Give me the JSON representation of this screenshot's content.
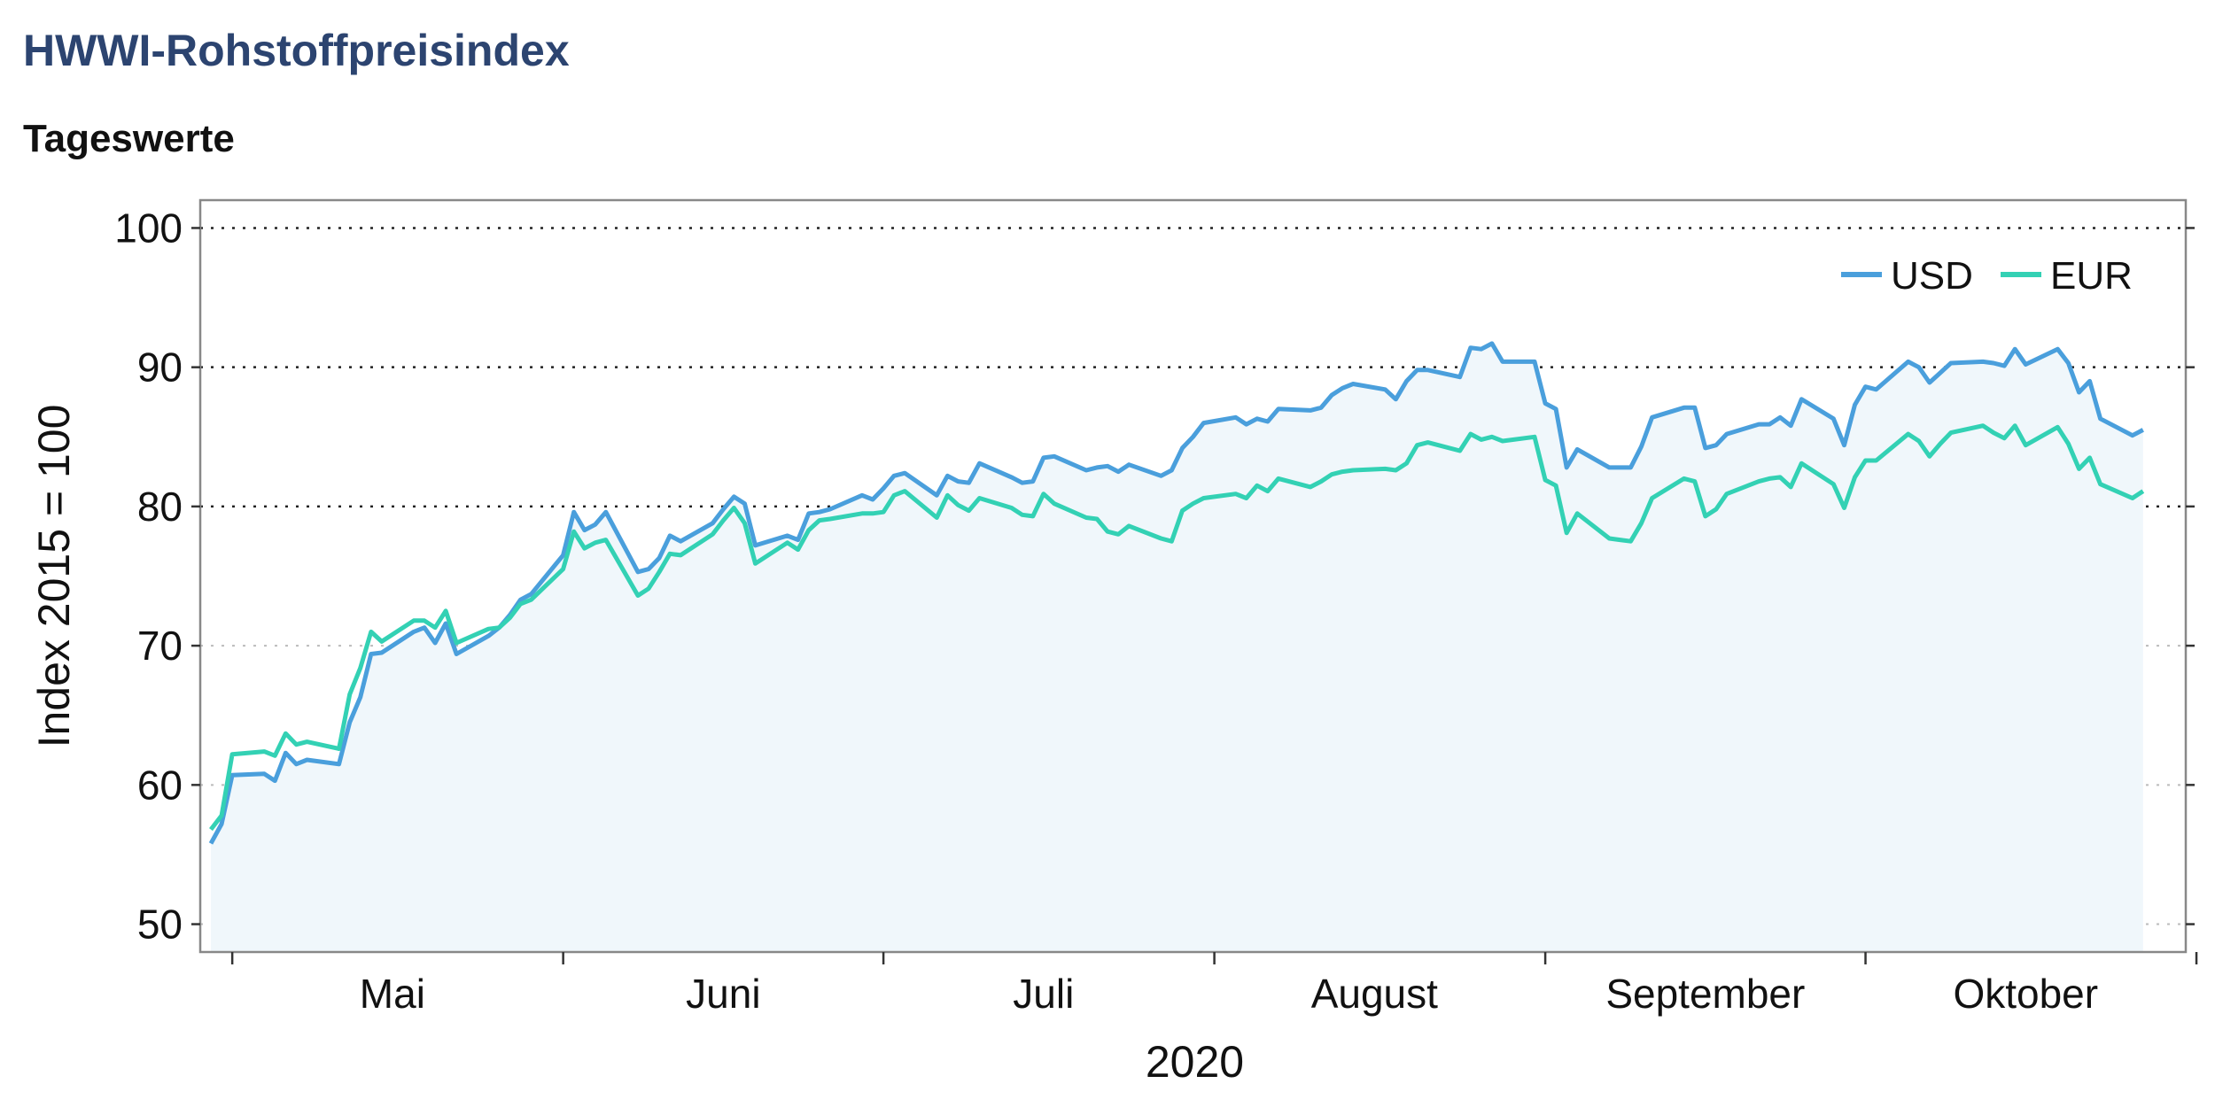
{
  "header": {
    "title": "HWWI-Rohstoffpreisindex",
    "subtitle": "Tageswerte"
  },
  "chart_data": {
    "type": "line",
    "title": "HWWI-Rohstoffpreisindex",
    "subtitle": "Tageswerte",
    "ylabel": "Index 2015 = 100",
    "xlabel": "2020",
    "ylim": [
      48,
      102
    ],
    "yticks": [
      50,
      60,
      70,
      80,
      90,
      100
    ],
    "month_labels": [
      "Mai",
      "Juni",
      "Juli",
      "August",
      "September",
      "Oktober"
    ],
    "month_ticks": [
      "2020-05-01",
      "2020-06-01",
      "2020-07-01",
      "2020-08-01",
      "2020-09-01",
      "2020-10-01",
      "2020-11-01"
    ],
    "x_range": [
      "2020-04-28",
      "2020-10-31"
    ],
    "grid": "horizontal-dotted",
    "legend_position": "top-right",
    "area_under": "USD",
    "colors": {
      "USD": "#4a9fdc",
      "EUR": "#33d1b4",
      "area": "#f0f7fb",
      "major_grid": "#222222",
      "minor_grid": "#bbbbbb",
      "frame": "#888888"
    },
    "series": [
      {
        "name": "USD",
        "color": "#4a9fdc",
        "points": [
          [
            "2020-04-29",
            55.8
          ],
          [
            "2020-04-30",
            57.2
          ],
          [
            "2020-05-01",
            60.7
          ],
          [
            "2020-05-04",
            60.8
          ],
          [
            "2020-05-05",
            60.3
          ],
          [
            "2020-05-06",
            62.3
          ],
          [
            "2020-05-07",
            61.5
          ],
          [
            "2020-05-08",
            61.8
          ],
          [
            "2020-05-11",
            61.5
          ],
          [
            "2020-05-12",
            64.5
          ],
          [
            "2020-05-13",
            66.3
          ],
          [
            "2020-05-14",
            69.4
          ],
          [
            "2020-05-15",
            69.5
          ],
          [
            "2020-05-18",
            71.0
          ],
          [
            "2020-05-19",
            71.3
          ],
          [
            "2020-05-20",
            70.2
          ],
          [
            "2020-05-21",
            71.6
          ],
          [
            "2020-05-22",
            69.4
          ],
          [
            "2020-05-25",
            70.7
          ],
          [
            "2020-05-26",
            71.3
          ],
          [
            "2020-05-27",
            72.2
          ],
          [
            "2020-05-28",
            73.3
          ],
          [
            "2020-05-29",
            73.7
          ],
          [
            "2020-06-01",
            76.5
          ],
          [
            "2020-06-02",
            79.6
          ],
          [
            "2020-06-03",
            78.3
          ],
          [
            "2020-06-04",
            78.7
          ],
          [
            "2020-06-05",
            79.6
          ],
          [
            "2020-06-08",
            75.3
          ],
          [
            "2020-06-09",
            75.5
          ],
          [
            "2020-06-10",
            76.3
          ],
          [
            "2020-06-11",
            77.9
          ],
          [
            "2020-06-12",
            77.5
          ],
          [
            "2020-06-15",
            78.8
          ],
          [
            "2020-06-16",
            79.8
          ],
          [
            "2020-06-17",
            80.7
          ],
          [
            "2020-06-18",
            80.2
          ],
          [
            "2020-06-19",
            77.2
          ],
          [
            "2020-06-22",
            77.9
          ],
          [
            "2020-06-23",
            77.6
          ],
          [
            "2020-06-24",
            79.5
          ],
          [
            "2020-06-25",
            79.6
          ],
          [
            "2020-06-26",
            79.8
          ],
          [
            "2020-06-29",
            80.8
          ],
          [
            "2020-06-30",
            80.5
          ],
          [
            "2020-07-01",
            81.3
          ],
          [
            "2020-07-02",
            82.2
          ],
          [
            "2020-07-03",
            82.4
          ],
          [
            "2020-07-06",
            80.8
          ],
          [
            "2020-07-07",
            82.2
          ],
          [
            "2020-07-08",
            81.8
          ],
          [
            "2020-07-09",
            81.7
          ],
          [
            "2020-07-10",
            83.1
          ],
          [
            "2020-07-13",
            82.1
          ],
          [
            "2020-07-14",
            81.7
          ],
          [
            "2020-07-15",
            81.8
          ],
          [
            "2020-07-16",
            83.5
          ],
          [
            "2020-07-17",
            83.6
          ],
          [
            "2020-07-20",
            82.6
          ],
          [
            "2020-07-21",
            82.8
          ],
          [
            "2020-07-22",
            82.9
          ],
          [
            "2020-07-23",
            82.5
          ],
          [
            "2020-07-24",
            83.0
          ],
          [
            "2020-07-27",
            82.2
          ],
          [
            "2020-07-28",
            82.6
          ],
          [
            "2020-07-29",
            84.2
          ],
          [
            "2020-07-30",
            85.0
          ],
          [
            "2020-07-31",
            86.0
          ],
          [
            "2020-08-03",
            86.4
          ],
          [
            "2020-08-04",
            85.9
          ],
          [
            "2020-08-05",
            86.3
          ],
          [
            "2020-08-06",
            86.1
          ],
          [
            "2020-08-07",
            87.0
          ],
          [
            "2020-08-10",
            86.9
          ],
          [
            "2020-08-11",
            87.1
          ],
          [
            "2020-08-12",
            88.0
          ],
          [
            "2020-08-13",
            88.5
          ],
          [
            "2020-08-14",
            88.8
          ],
          [
            "2020-08-17",
            88.4
          ],
          [
            "2020-08-18",
            87.7
          ],
          [
            "2020-08-19",
            89.0
          ],
          [
            "2020-08-20",
            89.8
          ],
          [
            "2020-08-21",
            89.8
          ],
          [
            "2020-08-24",
            89.3
          ],
          [
            "2020-08-25",
            91.4
          ],
          [
            "2020-08-26",
            91.3
          ],
          [
            "2020-08-27",
            91.7
          ],
          [
            "2020-08-28",
            90.4
          ],
          [
            "2020-08-31",
            90.4
          ],
          [
            "2020-09-01",
            87.4
          ],
          [
            "2020-09-02",
            87.0
          ],
          [
            "2020-09-03",
            82.8
          ],
          [
            "2020-09-04",
            84.1
          ],
          [
            "2020-09-07",
            82.8
          ],
          [
            "2020-09-08",
            82.8
          ],
          [
            "2020-09-09",
            82.8
          ],
          [
            "2020-09-10",
            84.3
          ],
          [
            "2020-09-11",
            86.4
          ],
          [
            "2020-09-14",
            87.1
          ],
          [
            "2020-09-15",
            87.1
          ],
          [
            "2020-09-16",
            84.2
          ],
          [
            "2020-09-17",
            84.4
          ],
          [
            "2020-09-18",
            85.2
          ],
          [
            "2020-09-21",
            85.9
          ],
          [
            "2020-09-22",
            85.9
          ],
          [
            "2020-09-23",
            86.4
          ],
          [
            "2020-09-24",
            85.8
          ],
          [
            "2020-09-25",
            87.7
          ],
          [
            "2020-09-28",
            86.3
          ],
          [
            "2020-09-29",
            84.4
          ],
          [
            "2020-09-30",
            87.3
          ],
          [
            "2020-10-01",
            88.6
          ],
          [
            "2020-10-02",
            88.4
          ],
          [
            "2020-10-05",
            90.4
          ],
          [
            "2020-10-06",
            90.0
          ],
          [
            "2020-10-07",
            88.9
          ],
          [
            "2020-10-08",
            89.6
          ],
          [
            "2020-10-09",
            90.3
          ],
          [
            "2020-10-12",
            90.4
          ],
          [
            "2020-10-13",
            90.3
          ],
          [
            "2020-10-14",
            90.1
          ],
          [
            "2020-10-15",
            91.3
          ],
          [
            "2020-10-16",
            90.2
          ],
          [
            "2020-10-19",
            91.3
          ],
          [
            "2020-10-20",
            90.3
          ],
          [
            "2020-10-21",
            88.2
          ],
          [
            "2020-10-22",
            89.0
          ],
          [
            "2020-10-23",
            86.3
          ],
          [
            "2020-10-26",
            85.1
          ],
          [
            "2020-10-27",
            85.5
          ]
        ]
      },
      {
        "name": "EUR",
        "color": "#33d1b4",
        "points": [
          [
            "2020-04-29",
            56.8
          ],
          [
            "2020-04-30",
            57.8
          ],
          [
            "2020-05-01",
            62.2
          ],
          [
            "2020-05-04",
            62.4
          ],
          [
            "2020-05-05",
            62.1
          ],
          [
            "2020-05-06",
            63.7
          ],
          [
            "2020-05-07",
            62.9
          ],
          [
            "2020-05-08",
            63.1
          ],
          [
            "2020-05-11",
            62.6
          ],
          [
            "2020-05-12",
            66.5
          ],
          [
            "2020-05-13",
            68.4
          ],
          [
            "2020-05-14",
            71.0
          ],
          [
            "2020-05-15",
            70.3
          ],
          [
            "2020-05-18",
            71.8
          ],
          [
            "2020-05-19",
            71.8
          ],
          [
            "2020-05-20",
            71.3
          ],
          [
            "2020-05-21",
            72.5
          ],
          [
            "2020-05-22",
            70.2
          ],
          [
            "2020-05-25",
            71.2
          ],
          [
            "2020-05-26",
            71.3
          ],
          [
            "2020-05-27",
            72.0
          ],
          [
            "2020-05-28",
            73.0
          ],
          [
            "2020-05-29",
            73.3
          ],
          [
            "2020-06-01",
            75.5
          ],
          [
            "2020-06-02",
            78.2
          ],
          [
            "2020-06-03",
            77.0
          ],
          [
            "2020-06-04",
            77.4
          ],
          [
            "2020-06-05",
            77.6
          ],
          [
            "2020-06-08",
            73.6
          ],
          [
            "2020-06-09",
            74.1
          ],
          [
            "2020-06-10",
            75.3
          ],
          [
            "2020-06-11",
            76.6
          ],
          [
            "2020-06-12",
            76.5
          ],
          [
            "2020-06-15",
            78.0
          ],
          [
            "2020-06-16",
            79.0
          ],
          [
            "2020-06-17",
            79.9
          ],
          [
            "2020-06-18",
            78.8
          ],
          [
            "2020-06-19",
            75.9
          ],
          [
            "2020-06-22",
            77.4
          ],
          [
            "2020-06-23",
            76.9
          ],
          [
            "2020-06-24",
            78.3
          ],
          [
            "2020-06-25",
            79.0
          ],
          [
            "2020-06-26",
            79.1
          ],
          [
            "2020-06-29",
            79.5
          ],
          [
            "2020-06-30",
            79.5
          ],
          [
            "2020-07-01",
            79.6
          ],
          [
            "2020-07-02",
            80.8
          ],
          [
            "2020-07-03",
            81.1
          ],
          [
            "2020-07-06",
            79.2
          ],
          [
            "2020-07-07",
            80.8
          ],
          [
            "2020-07-08",
            80.1
          ],
          [
            "2020-07-09",
            79.7
          ],
          [
            "2020-07-10",
            80.6
          ],
          [
            "2020-07-13",
            79.9
          ],
          [
            "2020-07-14",
            79.4
          ],
          [
            "2020-07-15",
            79.3
          ],
          [
            "2020-07-16",
            80.9
          ],
          [
            "2020-07-17",
            80.2
          ],
          [
            "2020-07-20",
            79.2
          ],
          [
            "2020-07-21",
            79.1
          ],
          [
            "2020-07-22",
            78.2
          ],
          [
            "2020-07-23",
            78.0
          ],
          [
            "2020-07-24",
            78.6
          ],
          [
            "2020-07-27",
            77.7
          ],
          [
            "2020-07-28",
            77.5
          ],
          [
            "2020-07-29",
            79.7
          ],
          [
            "2020-07-30",
            80.2
          ],
          [
            "2020-07-31",
            80.6
          ],
          [
            "2020-08-03",
            80.9
          ],
          [
            "2020-08-04",
            80.6
          ],
          [
            "2020-08-05",
            81.5
          ],
          [
            "2020-08-06",
            81.1
          ],
          [
            "2020-08-07",
            82.0
          ],
          [
            "2020-08-10",
            81.4
          ],
          [
            "2020-08-11",
            81.8
          ],
          [
            "2020-08-12",
            82.3
          ],
          [
            "2020-08-13",
            82.5
          ],
          [
            "2020-08-14",
            82.6
          ],
          [
            "2020-08-17",
            82.7
          ],
          [
            "2020-08-18",
            82.6
          ],
          [
            "2020-08-19",
            83.1
          ],
          [
            "2020-08-20",
            84.4
          ],
          [
            "2020-08-21",
            84.6
          ],
          [
            "2020-08-24",
            84.0
          ],
          [
            "2020-08-25",
            85.2
          ],
          [
            "2020-08-26",
            84.8
          ],
          [
            "2020-08-27",
            85.0
          ],
          [
            "2020-08-28",
            84.7
          ],
          [
            "2020-08-31",
            85.0
          ],
          [
            "2020-09-01",
            81.9
          ],
          [
            "2020-09-02",
            81.5
          ],
          [
            "2020-09-03",
            78.1
          ],
          [
            "2020-09-04",
            79.5
          ],
          [
            "2020-09-07",
            77.7
          ],
          [
            "2020-09-08",
            77.6
          ],
          [
            "2020-09-09",
            77.5
          ],
          [
            "2020-09-10",
            78.8
          ],
          [
            "2020-09-11",
            80.6
          ],
          [
            "2020-09-14",
            82.0
          ],
          [
            "2020-09-15",
            81.8
          ],
          [
            "2020-09-16",
            79.3
          ],
          [
            "2020-09-17",
            79.8
          ],
          [
            "2020-09-18",
            80.9
          ],
          [
            "2020-09-21",
            81.8
          ],
          [
            "2020-09-22",
            82.0
          ],
          [
            "2020-09-23",
            82.1
          ],
          [
            "2020-09-24",
            81.4
          ],
          [
            "2020-09-25",
            83.1
          ],
          [
            "2020-09-28",
            81.6
          ],
          [
            "2020-09-29",
            79.9
          ],
          [
            "2020-09-30",
            82.1
          ],
          [
            "2020-10-01",
            83.3
          ],
          [
            "2020-10-02",
            83.3
          ],
          [
            "2020-10-05",
            85.2
          ],
          [
            "2020-10-06",
            84.7
          ],
          [
            "2020-10-07",
            83.6
          ],
          [
            "2020-10-08",
            84.5
          ],
          [
            "2020-10-09",
            85.3
          ],
          [
            "2020-10-12",
            85.8
          ],
          [
            "2020-10-13",
            85.3
          ],
          [
            "2020-10-14",
            84.9
          ],
          [
            "2020-10-15",
            85.8
          ],
          [
            "2020-10-16",
            84.4
          ],
          [
            "2020-10-19",
            85.7
          ],
          [
            "2020-10-20",
            84.5
          ],
          [
            "2020-10-21",
            82.7
          ],
          [
            "2020-10-22",
            83.5
          ],
          [
            "2020-10-23",
            81.6
          ],
          [
            "2020-10-26",
            80.6
          ],
          [
            "2020-10-27",
            81.1
          ]
        ]
      }
    ]
  }
}
